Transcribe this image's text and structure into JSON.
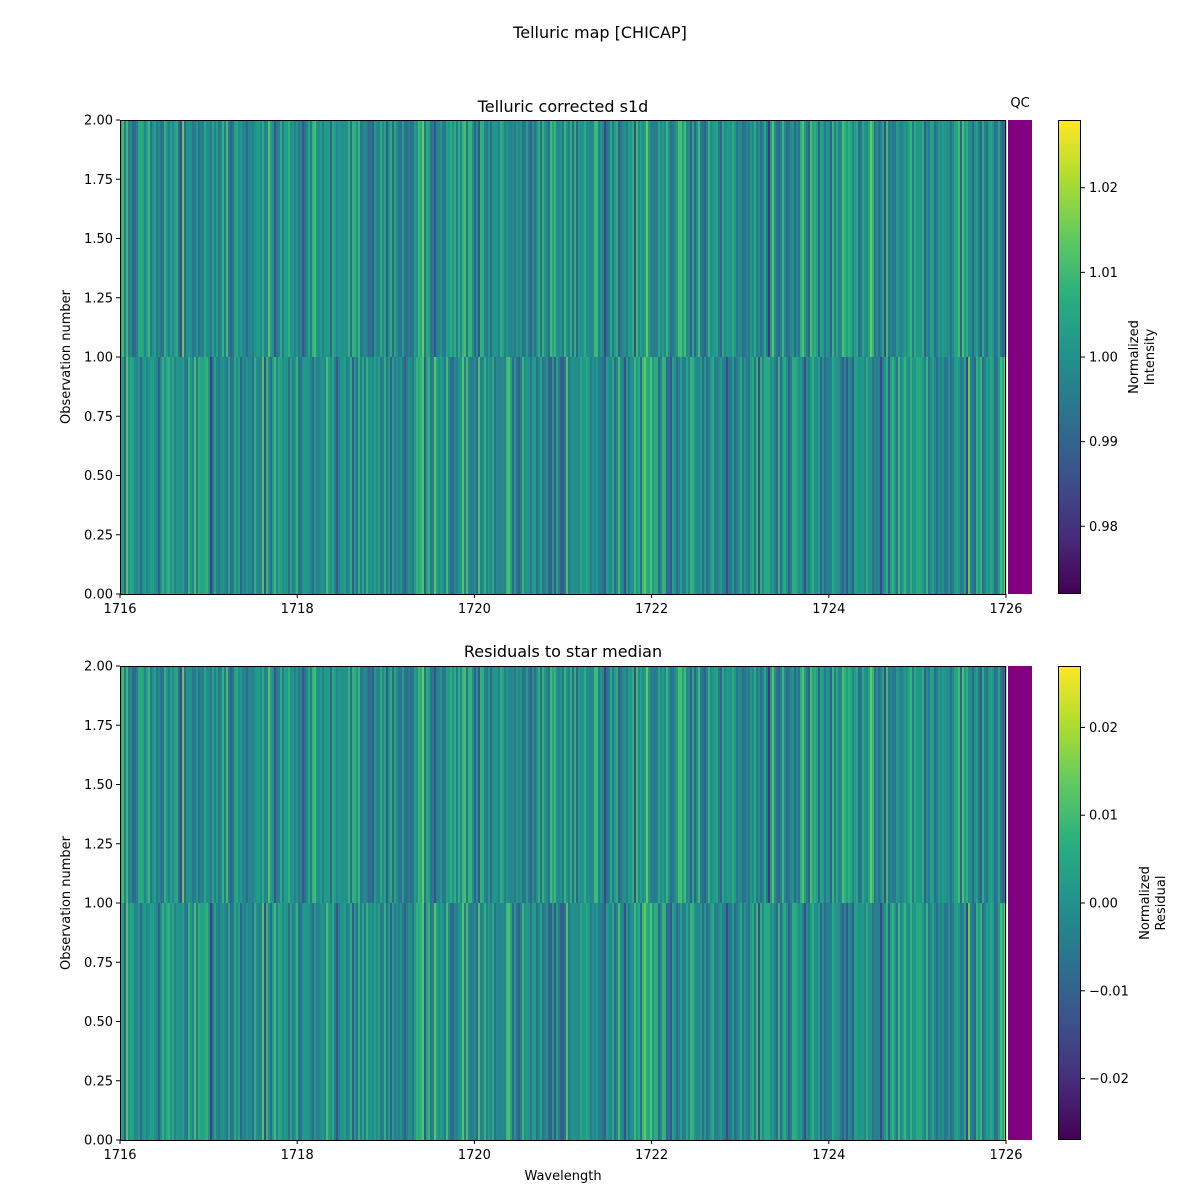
{
  "figure": {
    "suptitle": "Telluric map [CHICAP]"
  },
  "colors": {
    "qc_bar": "#800080",
    "colormap": "viridis"
  },
  "chart_data": [
    {
      "type": "heatmap",
      "title": "Telluric corrected s1d",
      "xlabel": "",
      "ylabel": "Observation number",
      "xlim": [
        1716,
        1726
      ],
      "ylim": [
        0,
        2
      ],
      "xticks": [
        "1716",
        "1718",
        "1720",
        "1722",
        "1724",
        "1726"
      ],
      "yticks": [
        "0.00",
        "0.25",
        "0.50",
        "0.75",
        "1.00",
        "1.25",
        "1.50",
        "1.75",
        "2.00"
      ],
      "rows": [
        {
          "observation": 0,
          "y_range": [
            0,
            1
          ]
        },
        {
          "observation": 1,
          "y_range": [
            1,
            2
          ]
        }
      ],
      "qc": {
        "label": "QC",
        "color": "#800080"
      },
      "colorbar": {
        "label_lines": [
          "Normalized",
          "Intensity"
        ],
        "range": [
          0.972,
          1.028
        ],
        "ticks": [
          "0.98",
          "0.99",
          "1.00",
          "1.01",
          "1.02"
        ],
        "tick_values": [
          0.98,
          0.99,
          1.0,
          1.01,
          1.02
        ]
      },
      "value_center": 1.0,
      "value_spread": 0.007,
      "seed": 7
    },
    {
      "type": "heatmap",
      "title": "Residuals to star median",
      "xlabel": "Wavelength",
      "ylabel": "Observation number",
      "xlim": [
        1716,
        1726
      ],
      "ylim": [
        0,
        2
      ],
      "xticks": [
        "1716",
        "1718",
        "1720",
        "1722",
        "1724",
        "1726"
      ],
      "yticks": [
        "0.00",
        "0.25",
        "0.50",
        "0.75",
        "1.00",
        "1.25",
        "1.50",
        "1.75",
        "2.00"
      ],
      "rows": [
        {
          "observation": 0,
          "y_range": [
            0,
            1
          ]
        },
        {
          "observation": 1,
          "y_range": [
            1,
            2
          ]
        }
      ],
      "qc": {
        "label": "",
        "color": "#800080"
      },
      "colorbar": {
        "label_lines": [
          "Normalized",
          "Residual"
        ],
        "range": [
          -0.027,
          0.027
        ],
        "ticks": [
          "−0.02",
          "−0.01",
          "0.00",
          "0.01",
          "0.02"
        ],
        "tick_values": [
          -0.02,
          -0.01,
          0.0,
          0.01,
          0.02
        ]
      },
      "value_center": 0.0,
      "value_spread": 0.0068,
      "seed": 7
    }
  ]
}
